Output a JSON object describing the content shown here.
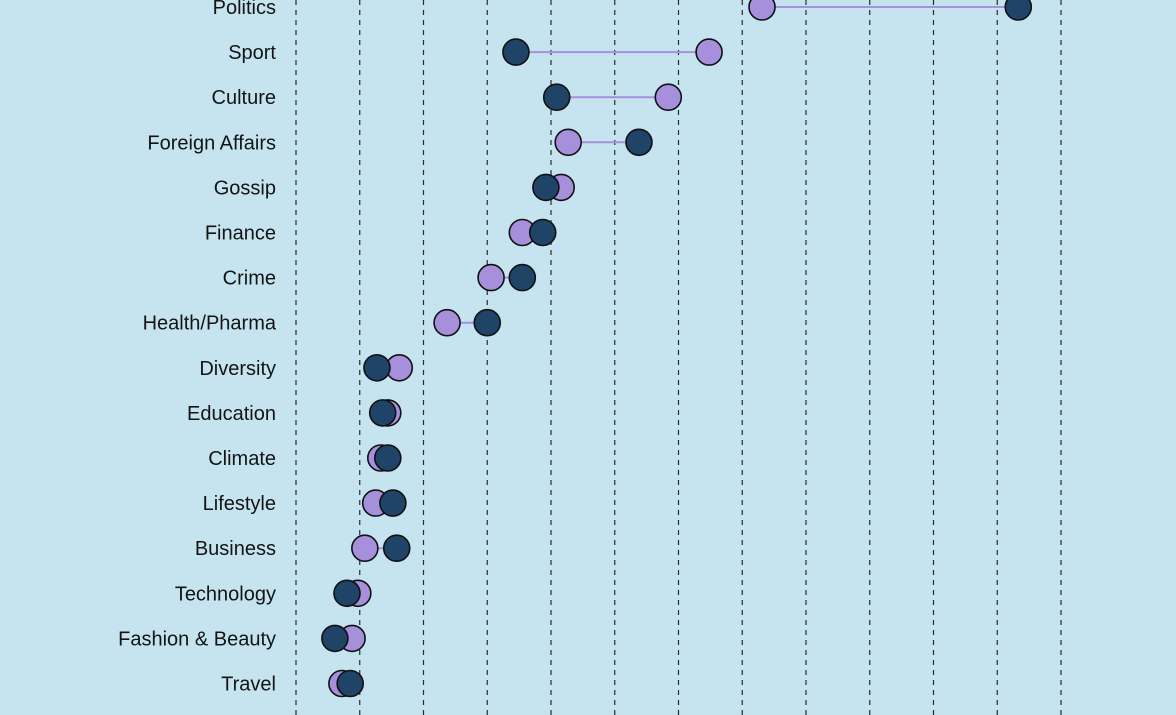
{
  "chart_data": {
    "type": "dumbbell",
    "title": "",
    "xlabel": "",
    "ylabel": "",
    "xlim": [
      0,
      12
    ],
    "grid": {
      "x": true,
      "y": false,
      "style": "dashed",
      "gridline_values": [
        0,
        1,
        2,
        3,
        4,
        5,
        6,
        7,
        8,
        9,
        10,
        11,
        12
      ]
    },
    "legend": null,
    "colors": {
      "background": "#c5e4f0",
      "connector": "#a68fdb",
      "outline": "#111111"
    },
    "series": [
      {
        "name": "",
        "key": "purple",
        "color": "#a68fdb"
      },
      {
        "name": "",
        "key": "navy",
        "color": "#1f4468"
      }
    ],
    "categories": [
      "Politics",
      "Sport",
      "Culture",
      "Foreign Affairs",
      "Gossip",
      "Finance",
      "Crime",
      "Health/Pharma",
      "Diversity",
      "Education",
      "Climate",
      "Lifestyle",
      "Business",
      "Technology",
      "Fashion & Beauty",
      "Travel"
    ],
    "points": [
      {
        "category": "Politics",
        "purple": 7.31,
        "navy": 11.33
      },
      {
        "category": "Sport",
        "purple": 6.48,
        "navy": 3.45
      },
      {
        "category": "Culture",
        "purple": 5.84,
        "navy": 4.09
      },
      {
        "category": "Foreign Affairs",
        "purple": 4.27,
        "navy": 5.38
      },
      {
        "category": "Gossip",
        "purple": 4.16,
        "navy": 3.92
      },
      {
        "category": "Finance",
        "purple": 3.55,
        "navy": 3.87
      },
      {
        "category": "Crime",
        "purple": 3.06,
        "navy": 3.55
      },
      {
        "category": "Health/Pharma",
        "purple": 2.37,
        "navy": 3.0
      },
      {
        "category": "Diversity",
        "purple": 1.62,
        "navy": 1.27
      },
      {
        "category": "Education",
        "purple": 1.44,
        "navy": 1.36
      },
      {
        "category": "Climate",
        "purple": 1.33,
        "navy": 1.44
      },
      {
        "category": "Lifestyle",
        "purple": 1.25,
        "navy": 1.52
      },
      {
        "category": "Business",
        "purple": 1.08,
        "navy": 1.58
      },
      {
        "category": "Technology",
        "purple": 0.97,
        "navy": 0.8
      },
      {
        "category": "Fashion & Beauty",
        "purple": 0.88,
        "navy": 0.61
      },
      {
        "category": "Travel",
        "purple": 0.72,
        "navy": 0.85
      }
    ]
  }
}
